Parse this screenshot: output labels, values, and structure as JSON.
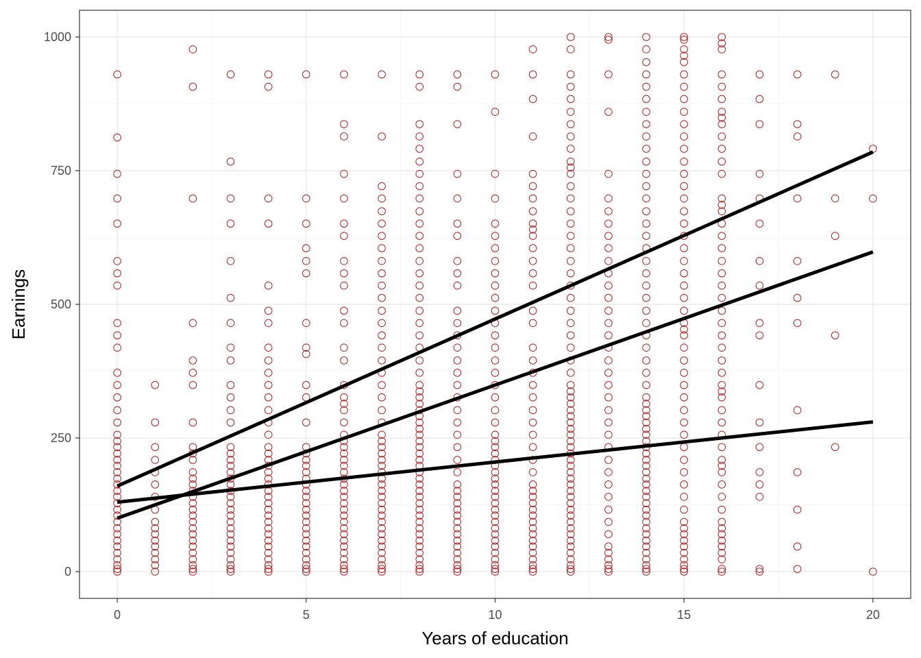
{
  "chart_data": {
    "type": "scatter",
    "title": "",
    "xlabel": "Years of education",
    "ylabel": "Earnings",
    "xlim": [
      -1,
      21
    ],
    "ylim": [
      -50,
      1050
    ],
    "x_ticks": [
      0,
      5,
      10,
      15,
      20
    ],
    "y_ticks": [
      0,
      250,
      500,
      750,
      1000
    ],
    "grid": true,
    "point_color": "#b22222",
    "line_color": "#000000",
    "point_columns": [
      {
        "x": 0,
        "y": [
          930,
          812,
          744,
          698,
          651,
          581,
          558,
          535,
          465,
          442,
          419,
          372,
          349,
          326,
          302,
          279,
          256,
          244,
          233,
          221,
          209,
          198,
          186,
          174,
          163,
          151,
          140,
          128,
          116,
          105,
          93,
          81,
          70,
          58,
          47,
          35,
          23,
          12,
          5,
          0
        ]
      },
      {
        "x": 1,
        "y": [
          349,
          279,
          233,
          209,
          186,
          163,
          140,
          116,
          93,
          81,
          70,
          58,
          47,
          35,
          23,
          12,
          0
        ]
      },
      {
        "x": 2,
        "y": [
          977,
          907,
          698,
          465,
          395,
          372,
          349,
          279,
          233,
          221,
          209,
          186,
          174,
          163,
          151,
          140,
          128,
          116,
          105,
          93,
          81,
          70,
          58,
          47,
          35,
          23,
          12,
          5,
          0
        ]
      },
      {
        "x": 3,
        "y": [
          930,
          767,
          698,
          651,
          581,
          512,
          465,
          419,
          395,
          349,
          326,
          302,
          279,
          233,
          221,
          209,
          198,
          186,
          174,
          163,
          151,
          140,
          128,
          116,
          105,
          93,
          81,
          70,
          58,
          47,
          35,
          23,
          12,
          5,
          0
        ]
      },
      {
        "x": 4,
        "y": [
          930,
          907,
          698,
          651,
          535,
          488,
          465,
          419,
          395,
          372,
          349,
          326,
          302,
          279,
          256,
          233,
          221,
          209,
          198,
          186,
          174,
          163,
          151,
          140,
          128,
          116,
          105,
          93,
          81,
          70,
          58,
          47,
          35,
          23,
          12,
          5,
          0
        ]
      },
      {
        "x": 5,
        "y": [
          930,
          698,
          651,
          605,
          581,
          558,
          465,
          419,
          407,
          349,
          326,
          279,
          233,
          221,
          209,
          198,
          186,
          174,
          163,
          151,
          140,
          128,
          116,
          105,
          93,
          81,
          70,
          58,
          47,
          35,
          23,
          12,
          5,
          0
        ]
      },
      {
        "x": 6,
        "y": [
          930,
          837,
          814,
          744,
          698,
          651,
          628,
          581,
          558,
          535,
          488,
          465,
          419,
          395,
          349,
          326,
          314,
          302,
          279,
          256,
          244,
          233,
          221,
          209,
          198,
          186,
          174,
          163,
          151,
          140,
          128,
          116,
          105,
          93,
          81,
          70,
          58,
          47,
          35,
          23,
          12,
          5,
          0
        ]
      },
      {
        "x": 7,
        "y": [
          930,
          814,
          721,
          698,
          674,
          651,
          628,
          605,
          581,
          558,
          535,
          512,
          488,
          465,
          442,
          419,
          395,
          372,
          349,
          326,
          302,
          279,
          256,
          244,
          233,
          221,
          209,
          198,
          186,
          174,
          163,
          151,
          140,
          128,
          116,
          105,
          93,
          81,
          70,
          58,
          47,
          35,
          23,
          12,
          5,
          0
        ]
      },
      {
        "x": 8,
        "y": [
          930,
          907,
          837,
          814,
          791,
          767,
          744,
          721,
          698,
          674,
          651,
          628,
          605,
          581,
          558,
          535,
          512,
          488,
          465,
          442,
          419,
          395,
          372,
          349,
          337,
          326,
          314,
          302,
          291,
          279,
          267,
          256,
          244,
          233,
          221,
          209,
          198,
          186,
          174,
          163,
          151,
          140,
          128,
          116,
          105,
          93,
          81,
          70,
          58,
          47,
          35,
          23,
          12,
          5,
          0
        ]
      },
      {
        "x": 9,
        "y": [
          930,
          907,
          837,
          744,
          698,
          651,
          628,
          581,
          558,
          535,
          488,
          465,
          442,
          419,
          395,
          372,
          349,
          326,
          302,
          279,
          256,
          233,
          209,
          186,
          163,
          151,
          140,
          128,
          116,
          105,
          93,
          81,
          70,
          58,
          47,
          35,
          23,
          12,
          5,
          0
        ]
      },
      {
        "x": 10,
        "y": [
          930,
          860,
          744,
          698,
          651,
          628,
          605,
          581,
          558,
          535,
          512,
          488,
          465,
          442,
          419,
          395,
          372,
          349,
          326,
          302,
          279,
          256,
          244,
          233,
          221,
          209,
          198,
          186,
          174,
          163,
          151,
          140,
          128,
          116,
          105,
          93,
          81,
          70,
          58,
          47,
          35,
          23,
          12,
          5,
          0
        ]
      },
      {
        "x": 11,
        "y": [
          977,
          930,
          884,
          814,
          744,
          721,
          698,
          674,
          651,
          640,
          628,
          605,
          581,
          558,
          535,
          488,
          465,
          419,
          395,
          372,
          349,
          326,
          302,
          279,
          256,
          233,
          209,
          186,
          163,
          151,
          140,
          128,
          116,
          105,
          93,
          81,
          70,
          58,
          47,
          35,
          23,
          12,
          5,
          0
        ]
      },
      {
        "x": 12,
        "y": [
          1000,
          977,
          930,
          907,
          884,
          860,
          837,
          814,
          791,
          767,
          756,
          744,
          721,
          698,
          674,
          651,
          628,
          605,
          581,
          558,
          535,
          512,
          488,
          465,
          442,
          419,
          395,
          372,
          349,
          337,
          326,
          314,
          302,
          291,
          279,
          267,
          256,
          244,
          233,
          221,
          209,
          198,
          186,
          174,
          163,
          151,
          140,
          128,
          116,
          105,
          93,
          81,
          70,
          58,
          47,
          35,
          23,
          12,
          5,
          0
        ]
      },
      {
        "x": 13,
        "y": [
          1000,
          995,
          930,
          860,
          744,
          698,
          674,
          651,
          628,
          605,
          581,
          558,
          535,
          512,
          488,
          465,
          442,
          419,
          395,
          372,
          349,
          326,
          302,
          279,
          256,
          233,
          209,
          186,
          163,
          140,
          116,
          93,
          70,
          47,
          35,
          23,
          12,
          5,
          0
        ]
      },
      {
        "x": 14,
        "y": [
          1000,
          977,
          953,
          930,
          907,
          884,
          860,
          837,
          814,
          791,
          767,
          744,
          721,
          698,
          674,
          651,
          628,
          605,
          581,
          558,
          535,
          512,
          488,
          465,
          442,
          419,
          395,
          372,
          349,
          326,
          314,
          302,
          291,
          279,
          267,
          256,
          244,
          233,
          221,
          209,
          198,
          186,
          174,
          163,
          151,
          140,
          128,
          116,
          105,
          93,
          81,
          70,
          58,
          47,
          35,
          23,
          12,
          5,
          0
        ]
      },
      {
        "x": 15,
        "y": [
          1000,
          995,
          977,
          965,
          953,
          930,
          907,
          884,
          860,
          837,
          814,
          791,
          767,
          744,
          721,
          698,
          674,
          651,
          628,
          605,
          581,
          558,
          535,
          512,
          488,
          465,
          453,
          442,
          419,
          395,
          372,
          349,
          326,
          302,
          279,
          256,
          233,
          209,
          186,
          163,
          140,
          116,
          93,
          81,
          70,
          58,
          47,
          35,
          23,
          12,
          5,
          0
        ]
      },
      {
        "x": 16,
        "y": [
          1000,
          988,
          977,
          930,
          907,
          884,
          860,
          849,
          837,
          814,
          791,
          767,
          744,
          698,
          686,
          674,
          651,
          628,
          605,
          581,
          558,
          535,
          512,
          488,
          465,
          442,
          419,
          395,
          372,
          349,
          337,
          326,
          302,
          279,
          256,
          233,
          209,
          198,
          186,
          163,
          140,
          116,
          93,
          81,
          70,
          58,
          47,
          35,
          23,
          5,
          0
        ]
      },
      {
        "x": 17,
        "y": [
          930,
          884,
          837,
          744,
          698,
          651,
          581,
          535,
          465,
          442,
          349,
          279,
          233,
          186,
          163,
          140,
          5,
          0
        ]
      },
      {
        "x": 18,
        "y": [
          930,
          837,
          814,
          698,
          581,
          512,
          465,
          302,
          186,
          116,
          47,
          5
        ]
      },
      {
        "x": 19,
        "y": [
          930,
          698,
          628,
          442,
          233
        ]
      },
      {
        "x": 20,
        "y": [
          791,
          698,
          0
        ]
      }
    ],
    "fit_lines": [
      {
        "x": [
          0,
          20
        ],
        "y": [
          160,
          785
        ]
      },
      {
        "x": [
          0,
          20
        ],
        "y": [
          100,
          598
        ]
      },
      {
        "x": [
          0,
          20
        ],
        "y": [
          130,
          280
        ]
      }
    ]
  }
}
